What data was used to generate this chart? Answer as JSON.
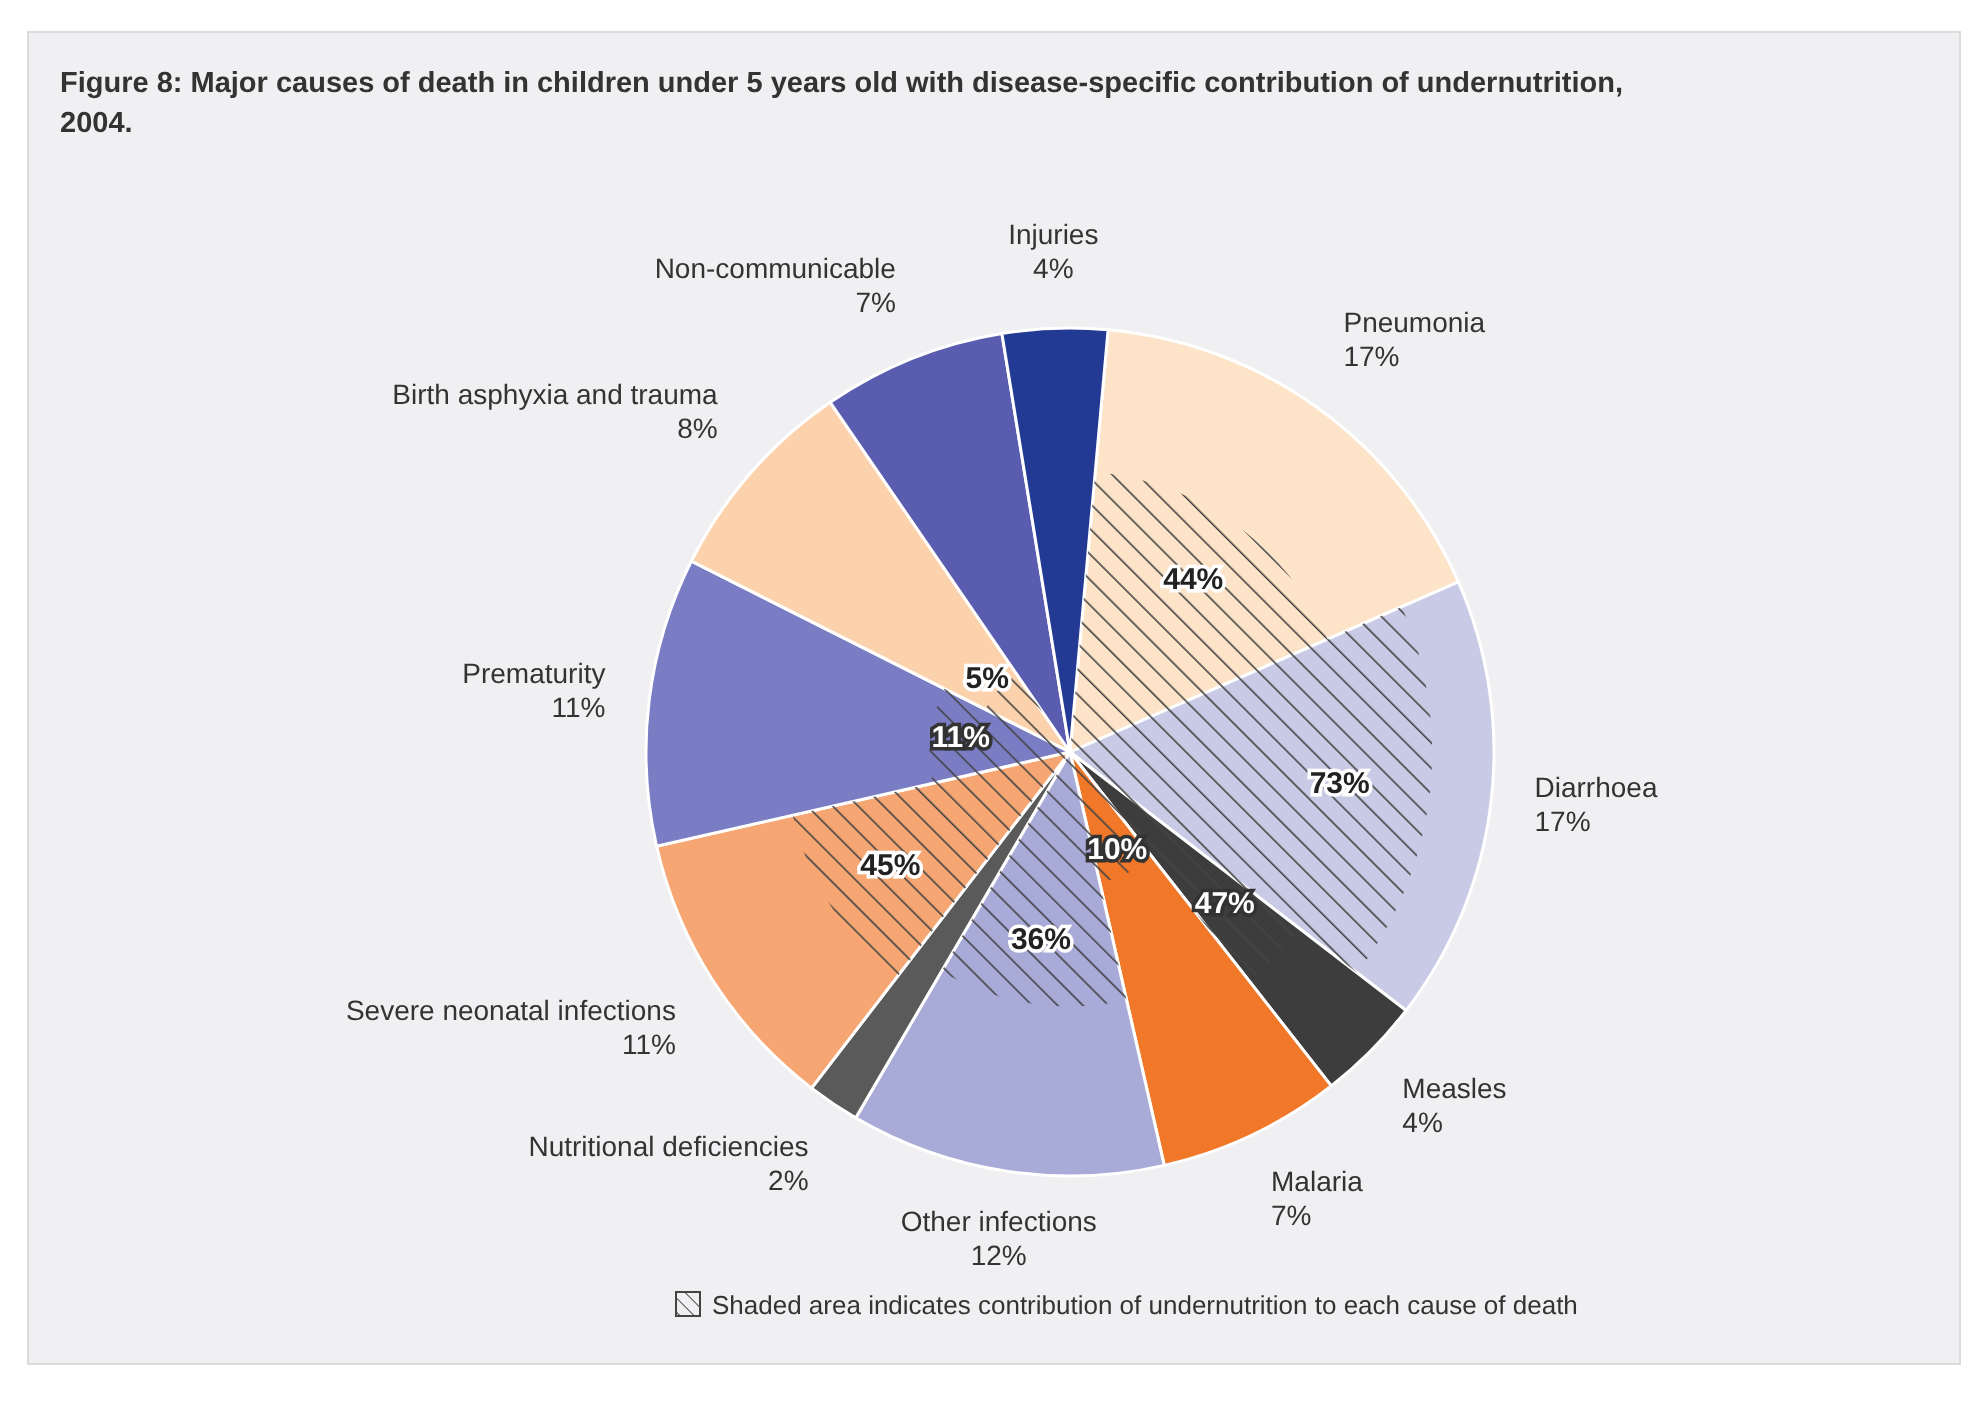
{
  "chart_data": {
    "type": "pie",
    "title": "Figure 8: Major causes of death in children under 5 years old with disease-specific contribution of undernutrition, 2004.",
    "categories": [
      "Pneumonia",
      "Diarrhoea",
      "Measles",
      "Malaria",
      "Other infections",
      "Nutritional deficiencies",
      "Severe neonatal infections",
      "Prematurity",
      "Birth asphyxia and trauma",
      "Non-communicable",
      "Injuries"
    ],
    "values": [
      17,
      17,
      4,
      7,
      12,
      2,
      11,
      11,
      8,
      7,
      4
    ],
    "colors": [
      "#fde3c8",
      "#c9cbe6",
      "#3d3d3d",
      "#f07828",
      "#a8aad8",
      "#5a5a5a",
      "#f6a673",
      "#7b7dc4",
      "#fcd2ac",
      "#5a5cb0",
      "#233a94"
    ],
    "value_labels": [
      "17%",
      "17%",
      "4%",
      "7%",
      "12%",
      "2%",
      "11%",
      "11%",
      "8%",
      "7%",
      "4%"
    ],
    "annotations": [
      {
        "text": "44%",
        "x": "Pneumonia"
      },
      {
        "text": "73%",
        "x": "Diarrhoea"
      },
      {
        "text": "47%",
        "x": "Measles"
      },
      {
        "text": "10%",
        "x": "Malaria"
      },
      {
        "text": "36%",
        "x": "Other infections"
      },
      {
        "text": "45%",
        "x": "Severe neonatal infections"
      },
      {
        "text": "11%",
        "x": "Prematurity"
      },
      {
        "text": "5%",
        "x": "Birth asphyxia and trauma"
      },
      "Shaded area indicates contribution of undernutrition to each cause of death"
    ]
  }
}
